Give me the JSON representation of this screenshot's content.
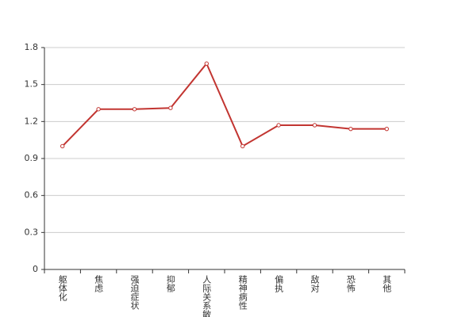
{
  "chart_data": {
    "type": "line",
    "categories": [
      "躯体化",
      "焦虑",
      "强迫症状",
      "抑郁",
      "人际关系敏感",
      "精神病性",
      "偏执",
      "敌对",
      "恐怖",
      "其他"
    ],
    "series": [
      {
        "color": "#c23531",
        "values": [
          1.0,
          1.3,
          1.3,
          1.31,
          1.67,
          1.0,
          1.17,
          1.17,
          1.14,
          1.14
        ]
      }
    ],
    "ylim": [
      0,
      1.8
    ],
    "yticks": [
      0,
      0.3,
      0.6,
      0.9,
      1.2,
      1.5,
      1.8
    ],
    "grid": true
  }
}
